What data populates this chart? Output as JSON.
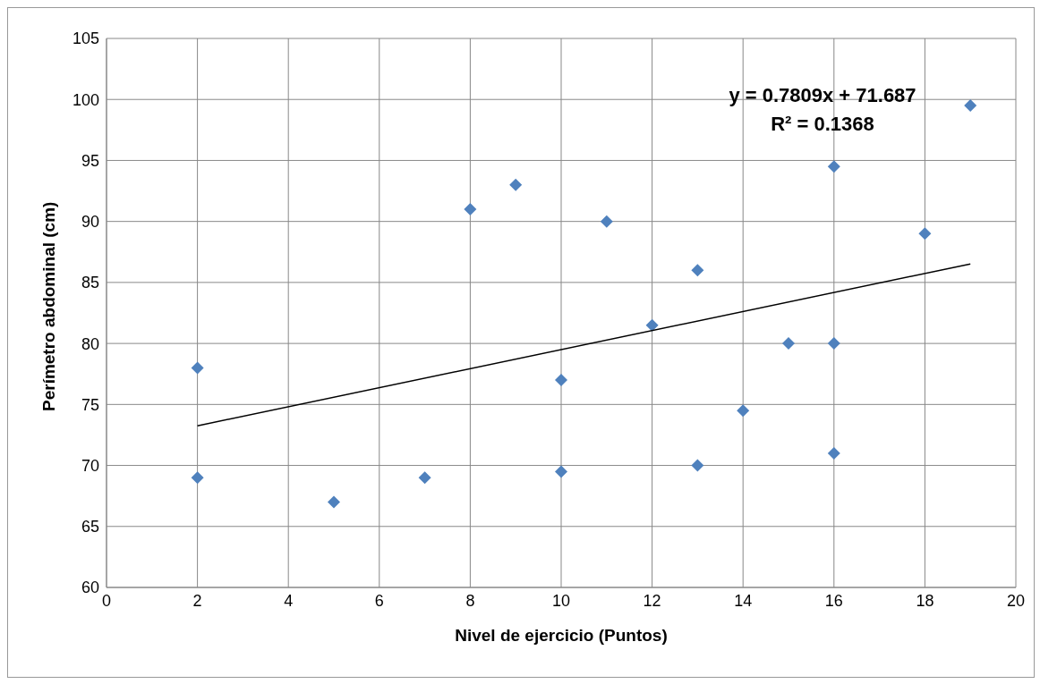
{
  "chart_data": {
    "type": "scatter",
    "xlabel": "Nivel de ejercicio (Puntos)",
    "ylabel": "Perímetro abdominal (cm)",
    "series": [
      {
        "color": "#4f81bd",
        "marker": "diamond",
        "x": [
          2,
          2,
          5,
          7,
          8,
          9,
          10,
          10,
          11,
          12,
          13,
          13,
          14,
          15,
          16,
          16,
          16,
          18,
          19
        ],
        "values": [
          78,
          69,
          67,
          69,
          91,
          93,
          77,
          69.5,
          90,
          81.5,
          86,
          70,
          74.5,
          80,
          94.5,
          80,
          71,
          89,
          99.5
        ]
      },
      {
        "type": "line",
        "color": "#000000",
        "marker": "none",
        "x": [
          2,
          19
        ],
        "values": [
          73.25,
          86.52
        ]
      }
    ],
    "annotations": [
      "y = 0.7809x + 71.687",
      "R² = 0.1368"
    ],
    "xlim": [
      0,
      20
    ],
    "xticks": [
      0,
      2,
      4,
      6,
      8,
      10,
      12,
      14,
      16,
      18,
      20
    ],
    "ylim": [
      60,
      105
    ],
    "yticks": [
      60,
      65,
      70,
      75,
      80,
      85,
      90,
      95,
      100,
      105
    ],
    "grid": true
  }
}
